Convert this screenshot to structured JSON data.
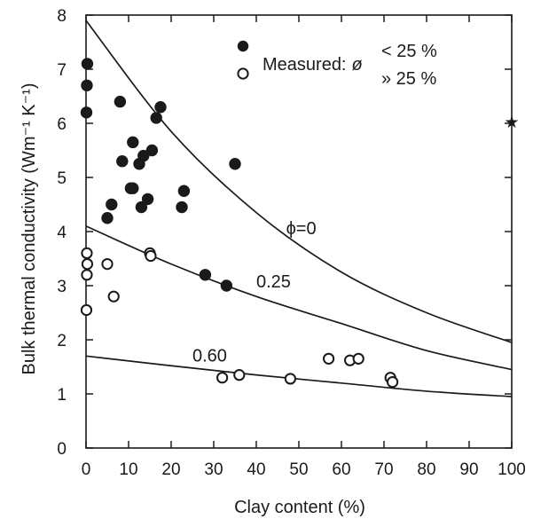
{
  "chart_data": {
    "type": "scatter",
    "xlabel": "Clay content (%)",
    "ylabel": "Bulk thermal conductivity (Wm⁻¹ K⁻¹)",
    "xlim": [
      0,
      100
    ],
    "ylim": [
      0,
      8
    ],
    "x_ticks": [
      0,
      10,
      20,
      30,
      40,
      50,
      60,
      70,
      80,
      90,
      100
    ],
    "y_ticks": [
      0,
      1,
      2,
      3,
      4,
      5,
      6,
      7,
      8
    ],
    "grid": false,
    "legend": {
      "position": "top-right",
      "prefix": "Measured:",
      "symbol": "ø",
      "entries": [
        {
          "marker": "filled",
          "label": "< 25 %"
        },
        {
          "marker": "open",
          "label": "» 25 %"
        }
      ]
    },
    "series": [
      {
        "marker": "filled",
        "points": [
          [
            0.3,
            7.1
          ],
          [
            0.2,
            6.7
          ],
          [
            0.1,
            6.2
          ],
          [
            8,
            6.4
          ],
          [
            11,
            5.65
          ],
          [
            8.5,
            5.3
          ],
          [
            12.5,
            5.25
          ],
          [
            13.5,
            5.4
          ],
          [
            15.5,
            5.5
          ],
          [
            16.5,
            6.1
          ],
          [
            17.5,
            6.3
          ],
          [
            11,
            4.8
          ],
          [
            10.5,
            4.8
          ],
          [
            14.5,
            4.6
          ],
          [
            13,
            4.45
          ],
          [
            6,
            4.5
          ],
          [
            5,
            4.25
          ],
          [
            22.5,
            4.45
          ],
          [
            23,
            4.75
          ],
          [
            28,
            3.2
          ],
          [
            33,
            3.0
          ],
          [
            35,
            5.25
          ]
        ]
      },
      {
        "marker": "open",
        "points": [
          [
            0.2,
            3.6
          ],
          [
            0.3,
            3.4
          ],
          [
            0.2,
            3.2
          ],
          [
            0.1,
            2.55
          ],
          [
            5,
            3.4
          ],
          [
            6.5,
            2.8
          ],
          [
            15,
            3.6
          ],
          [
            15.2,
            3.55
          ],
          [
            32,
            1.3
          ],
          [
            36,
            1.35
          ],
          [
            48,
            1.28
          ],
          [
            57,
            1.65
          ],
          [
            62,
            1.62
          ],
          [
            64,
            1.65
          ],
          [
            71.5,
            1.3
          ],
          [
            72,
            1.22
          ]
        ]
      }
    ],
    "curves": [
      {
        "label": "ϕ=0",
        "label_at": [
          47,
          3.95
        ],
        "points": [
          [
            0,
            7.9
          ],
          [
            20,
            5.85
          ],
          [
            40,
            4.35
          ],
          [
            60,
            3.25
          ],
          [
            80,
            2.5
          ],
          [
            100,
            1.95
          ]
        ]
      },
      {
        "label": "0.25",
        "label_at": [
          40,
          2.97
        ],
        "points": [
          [
            0,
            4.1
          ],
          [
            20,
            3.4
          ],
          [
            40,
            2.8
          ],
          [
            60,
            2.3
          ],
          [
            80,
            1.8
          ],
          [
            100,
            1.45
          ]
        ]
      },
      {
        "label": "0.60",
        "label_at": [
          25,
          1.6
        ],
        "points": [
          [
            0,
            1.7
          ],
          [
            20,
            1.52
          ],
          [
            40,
            1.35
          ],
          [
            60,
            1.2
          ],
          [
            80,
            1.05
          ],
          [
            100,
            0.95
          ]
        ]
      }
    ],
    "annotations": [
      {
        "text": "★",
        "at": [
          100,
          6.05
        ]
      }
    ]
  }
}
